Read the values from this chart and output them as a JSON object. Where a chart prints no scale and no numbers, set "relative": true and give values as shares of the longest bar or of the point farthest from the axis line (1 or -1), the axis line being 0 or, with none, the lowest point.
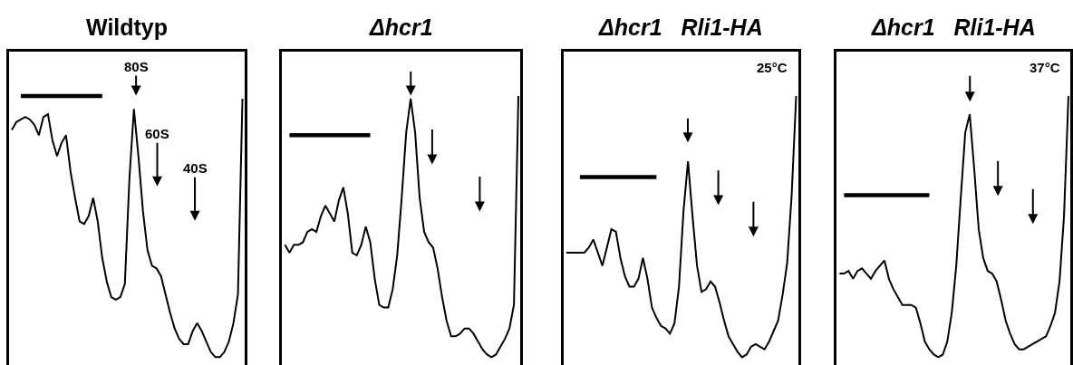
{
  "chart_data": [
    {
      "type": "line",
      "title": "Wildtyp",
      "relative": true,
      "annotations": [
        "80S",
        "60S",
        "40S"
      ],
      "categories": [
        null,
        null,
        null,
        null,
        null,
        null,
        null,
        null,
        null,
        null,
        null,
        null,
        null,
        null,
        null,
        null,
        null,
        null,
        null,
        null,
        null,
        null,
        null,
        null,
        null,
        null,
        null,
        null,
        null,
        null,
        null,
        null,
        null,
        null,
        null,
        null,
        null,
        null,
        null,
        null,
        null,
        null,
        null,
        null,
        null,
        null,
        null,
        null,
        null,
        null,
        null,
        null
      ],
      "series": [
        {
          "color": "#000000",
          "values": [
            0.87,
            0.9,
            0.91,
            0.92,
            0.91,
            0.89,
            0.85,
            0.92,
            0.93,
            0.83,
            0.77,
            0.82,
            0.85,
            0.71,
            0.61,
            0.52,
            0.51,
            0.54,
            0.61,
            0.52,
            0.38,
            0.29,
            0.23,
            0.22,
            0.23,
            0.28,
            0.68,
            0.95,
            0.77,
            0.56,
            0.41,
            0.35,
            0.34,
            0.31,
            0.24,
            0.17,
            0.11,
            0.07,
            0.05,
            0.05,
            0.1,
            0.13,
            0.1,
            0.06,
            0.02,
            0,
            0,
            0.02,
            0.06,
            0.13,
            0.24,
            0.99
          ]
        },
        {
          "color": "#000000",
          "values": [
            null,
            null,
            1,
            1,
            1,
            1,
            1,
            1,
            1,
            1,
            1,
            1,
            1,
            1,
            1,
            1,
            1,
            1,
            1,
            1,
            1,
            null,
            null,
            null,
            null,
            null,
            null,
            null,
            null,
            null,
            null,
            null,
            null,
            null,
            null,
            null,
            null,
            null,
            null,
            null,
            null,
            null,
            null,
            null,
            null,
            null,
            null,
            null,
            null,
            null,
            null,
            null
          ]
        }
      ]
    },
    {
      "type": "line",
      "title": "Δhcr1",
      "relative": true,
      "categories": [
        null,
        null,
        null,
        null,
        null,
        null,
        null,
        null,
        null,
        null,
        null,
        null,
        null,
        null,
        null,
        null,
        null,
        null,
        null,
        null,
        null,
        null,
        null,
        null,
        null,
        null,
        null,
        null,
        null,
        null,
        null,
        null,
        null,
        null,
        null,
        null,
        null,
        null,
        null,
        null,
        null,
        null,
        null,
        null,
        null,
        null,
        null,
        null,
        null,
        null,
        null,
        null,
        null
      ],
      "series": [
        {
          "color": "#000000",
          "values": [
            0.43,
            0.4,
            0.43,
            0.43,
            0.44,
            0.48,
            0.49,
            0.48,
            0.54,
            0.58,
            0.55,
            0.52,
            0.6,
            0.65,
            0.55,
            0.4,
            0.39,
            0.43,
            0.5,
            0.44,
            0.3,
            0.2,
            0.19,
            0.19,
            0.26,
            0.39,
            0.61,
            0.86,
            0.99,
            0.86,
            0.61,
            0.48,
            0.44,
            0.42,
            0.34,
            0.23,
            0.14,
            0.08,
            0.08,
            0.09,
            0.11,
            0.11,
            0.09,
            0.06,
            0.03,
            0.01,
            0,
            0.01,
            0.04,
            0.07,
            0.11,
            0.2,
            1.0
          ]
        },
        {
          "color": "#000000",
          "values": [
            null,
            0.85,
            0.85,
            0.85,
            0.85,
            0.85,
            0.85,
            0.85,
            0.85,
            0.85,
            0.85,
            0.85,
            0.85,
            0.85,
            0.85,
            0.85,
            0.85,
            0.85,
            0.85,
            0.85,
            null,
            null,
            null,
            null,
            null,
            null,
            null,
            null,
            null,
            null,
            null,
            null,
            null,
            null,
            null,
            null,
            null,
            null,
            null,
            null,
            null,
            null,
            null,
            null,
            null,
            null,
            null,
            null,
            null,
            null,
            null,
            null,
            null
          ]
        }
      ]
    },
    {
      "type": "line",
      "title": "Δhcr1   Rli1-HA",
      "relative": true,
      "annotations": [
        "25°C"
      ],
      "categories": [
        null,
        null,
        null,
        null,
        null,
        null,
        null,
        null,
        null,
        null,
        null,
        null,
        null,
        null,
        null,
        null,
        null,
        null,
        null,
        null,
        null,
        null,
        null,
        null,
        null,
        null,
        null,
        null,
        null,
        null,
        null,
        null,
        null,
        null,
        null,
        null,
        null,
        null,
        null,
        null,
        null,
        null,
        null,
        null,
        null,
        null,
        null,
        null,
        null,
        null,
        null,
        null
      ],
      "series": [
        {
          "color": "#000000",
          "values": [
            0.4,
            0.4,
            0.4,
            0.4,
            0.4,
            0.42,
            0.45,
            0.4,
            0.35,
            0.42,
            0.49,
            0.48,
            0.38,
            0.31,
            0.27,
            0.27,
            0.3,
            0.38,
            0.3,
            0.19,
            0.15,
            0.12,
            0.11,
            0.09,
            0.13,
            0.27,
            0.56,
            0.75,
            0.54,
            0.35,
            0.25,
            0.26,
            0.29,
            0.27,
            0.21,
            0.14,
            0.08,
            0.05,
            0.02,
            0,
            0.01,
            0.04,
            0.05,
            0.04,
            0.03,
            0.06,
            0.1,
            0.14,
            0.24,
            0.36,
            0.62,
            1.0
          ]
        },
        {
          "color": "#000000",
          "values": [
            null,
            null,
            null,
            0.69,
            0.69,
            0.69,
            0.69,
            0.69,
            0.69,
            0.69,
            0.69,
            0.69,
            0.69,
            0.69,
            0.69,
            0.69,
            0.69,
            0.69,
            0.69,
            0.69,
            0.69,
            null,
            null,
            null,
            null,
            null,
            null,
            null,
            null,
            null,
            null,
            null,
            null,
            null,
            null,
            null,
            null,
            null,
            null,
            null,
            null,
            null,
            null,
            null,
            null,
            null,
            null,
            null,
            null,
            null,
            null,
            null
          ]
        }
      ]
    },
    {
      "type": "line",
      "title": "Δhcr1   Rli1-HA",
      "relative": true,
      "annotations": [
        "37°C"
      ],
      "categories": [
        null,
        null,
        null,
        null,
        null,
        null,
        null,
        null,
        null,
        null,
        null,
        null,
        null,
        null,
        null,
        null,
        null,
        null,
        null,
        null,
        null,
        null,
        null,
        null,
        null,
        null,
        null,
        null,
        null,
        null,
        null,
        null,
        null,
        null,
        null,
        null,
        null,
        null,
        null,
        null,
        null,
        null,
        null,
        null,
        null,
        null,
        null,
        null,
        null,
        null,
        null,
        null
      ],
      "series": [
        {
          "color": "#000000",
          "values": [
            0.32,
            0.32,
            0.33,
            0.3,
            0.33,
            0.34,
            0.32,
            0.3,
            0.33,
            0.35,
            0.37,
            0.3,
            0.26,
            0.23,
            0.2,
            0.2,
            0.2,
            0.19,
            0.13,
            0.06,
            0.03,
            0.01,
            0,
            0.01,
            0.06,
            0.17,
            0.35,
            0.61,
            0.86,
            0.93,
            0.72,
            0.49,
            0.38,
            0.33,
            0.32,
            0.29,
            0.22,
            0.14,
            0.09,
            0.05,
            0.03,
            0.03,
            0.04,
            0.05,
            0.06,
            0.07,
            0.08,
            0.12,
            0.17,
            0.29,
            0.54,
            1.0
          ]
        },
        {
          "color": "#000000",
          "values": [
            null,
            0.62,
            0.62,
            0.62,
            0.62,
            0.62,
            0.62,
            0.62,
            0.62,
            0.62,
            0.62,
            0.62,
            0.62,
            0.62,
            0.62,
            0.62,
            0.62,
            0.62,
            0.62,
            0.62,
            0.62,
            null,
            null,
            null,
            null,
            null,
            null,
            null,
            null,
            null,
            null,
            null,
            null,
            null,
            null,
            null,
            null,
            null,
            null,
            null,
            null,
            null,
            null,
            null,
            null,
            null,
            null,
            null,
            null,
            null,
            null,
            null
          ]
        }
      ]
    }
  ]
}
